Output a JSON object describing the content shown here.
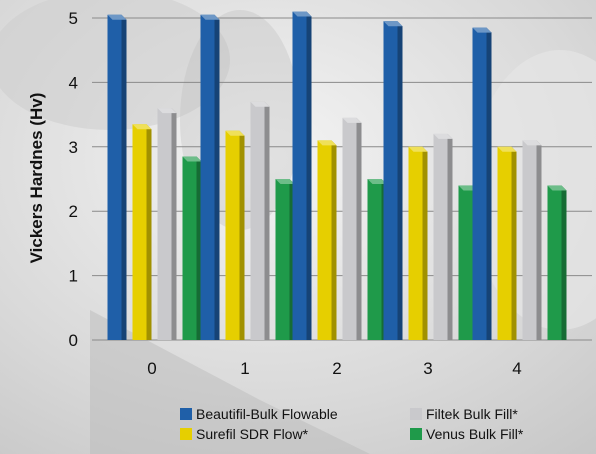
{
  "chart_data": {
    "type": "bar",
    "ylabel": "Vickers Hardnes (Hv)",
    "xlabel": "",
    "ylim": [
      0,
      5
    ],
    "yticks": [
      0,
      1,
      2,
      3,
      4,
      5
    ],
    "grid": true,
    "legend_position": "bottom",
    "categories": [
      "0",
      "1",
      "2",
      "3",
      "4"
    ],
    "series": [
      {
        "name": "Beautifil-Bulk Flowable",
        "color": "#1f5fa8",
        "values": [
          5.05,
          5.05,
          5.1,
          4.95,
          4.85
        ]
      },
      {
        "name": "Surefil SDR Flow*",
        "color": "#e6cf00",
        "values": [
          3.35,
          3.25,
          3.1,
          3.0,
          3.0
        ]
      },
      {
        "name": "Filtek Bulk Fill*",
        "color": "#c9c9cc",
        "values": [
          3.6,
          3.7,
          3.45,
          3.2,
          3.1
        ]
      },
      {
        "name": "Venus Bulk Fill*",
        "color": "#1f9a4a",
        "values": [
          2.85,
          2.5,
          2.5,
          2.4,
          2.4
        ]
      }
    ]
  }
}
